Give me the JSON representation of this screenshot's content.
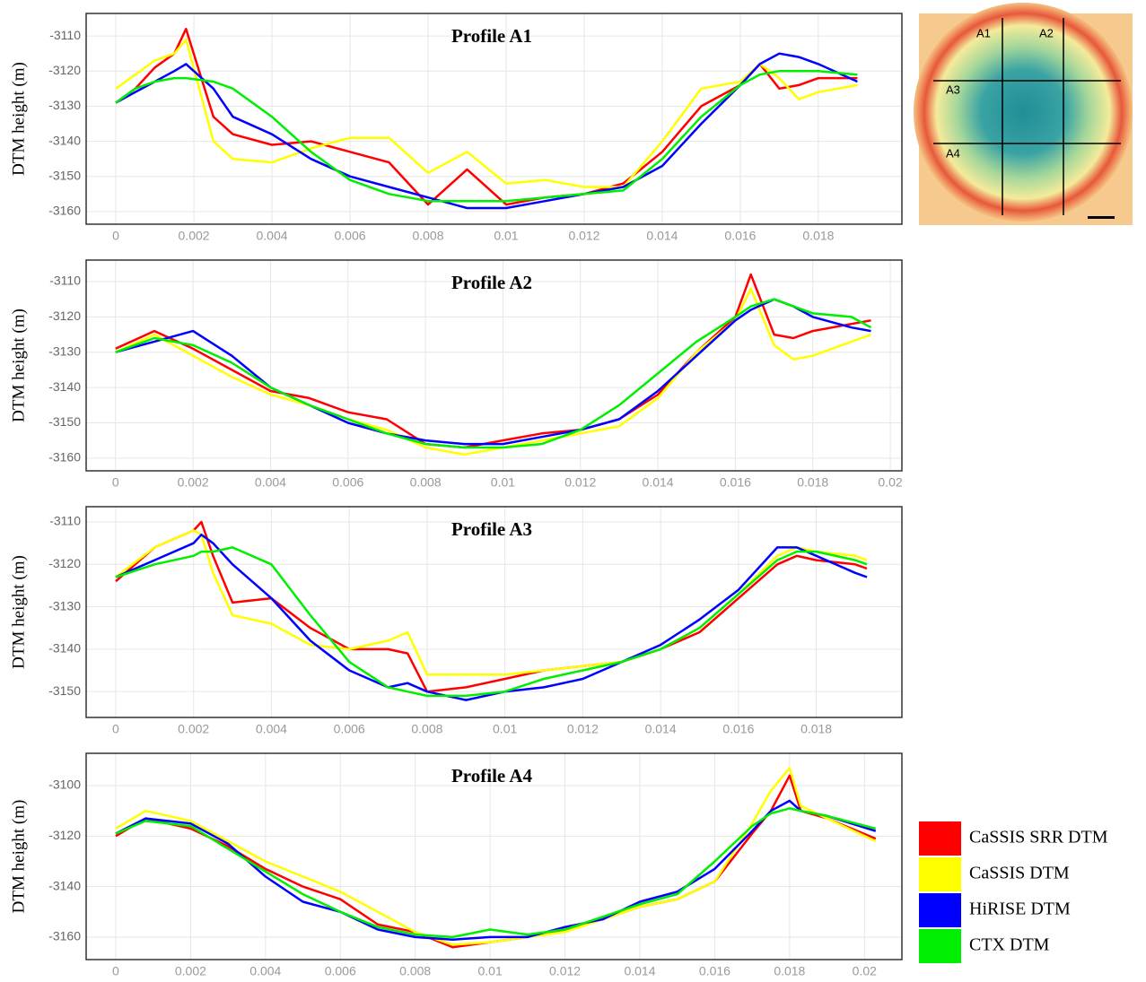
{
  "chart_data": [
    {
      "type": "line",
      "title": "Profile A1",
      "y_label": "DTM height (m)",
      "x": [
        0,
        0.0005,
        0.001,
        0.0015,
        0.0018,
        0.0025,
        0.003,
        0.004,
        0.005,
        0.006,
        0.007,
        0.008,
        0.009,
        0.01,
        0.011,
        0.012,
        0.013,
        0.014,
        0.015,
        0.016,
        0.0165,
        0.017,
        0.0175,
        0.018,
        0.019
      ],
      "series": [
        {
          "name": "CaSSIS SRR DTM",
          "color": "#ff0000",
          "values": [
            -3129,
            -3125,
            -3119,
            -3115,
            -3108,
            -3133,
            -3138,
            -3141,
            -3140,
            -3143,
            -3146,
            -3158,
            -3148,
            -3158,
            -3156,
            -3155,
            -3152,
            -3143,
            -3130,
            -3124,
            -3118,
            -3125,
            -3124,
            -3122,
            -3122
          ]
        },
        {
          "name": "CaSSIS DTM",
          "color": "#ffff00",
          "values": [
            -3125,
            -3121,
            -3117,
            -3115,
            -3111,
            -3140,
            -3145,
            -3146,
            -3142,
            -3139,
            -3139,
            -3149,
            -3143,
            -3152,
            -3151,
            -3153,
            -3153,
            -3140,
            -3125,
            -3123,
            -3118,
            -3122,
            -3128,
            -3126,
            -3124
          ]
        },
        {
          "name": "HiRISE DTM",
          "color": "#0000ff",
          "values": [
            -3129,
            -3126,
            -3123,
            -3120,
            -3118,
            -3125,
            -3133,
            -3138,
            -3145,
            -3150,
            -3153,
            -3156,
            -3159,
            -3159,
            -3157,
            -3155,
            -3153,
            -3147,
            -3135,
            -3124,
            -3118,
            -3115,
            -3116,
            -3118,
            -3123
          ]
        },
        {
          "name": "CTX DTM",
          "color": "#00ee00",
          "values": [
            -3129,
            -3125,
            -3123,
            -3122,
            -3122,
            -3123,
            -3125,
            -3133,
            -3143,
            -3151,
            -3155,
            -3157,
            -3157,
            -3157,
            -3156,
            -3155,
            -3154,
            -3145,
            -3133,
            -3124,
            -3121,
            -3120,
            -3120,
            -3120,
            -3121
          ]
        }
      ],
      "xlim": [
        -0.00076,
        0.02014
      ],
      "ylim": [
        -3163.6,
        -3103.6
      ],
      "xticks": [
        0,
        0.002,
        0.004,
        0.006,
        0.008,
        0.01,
        0.012,
        0.014,
        0.016,
        0.018
      ],
      "yticks": [
        -3110,
        -3120,
        -3130,
        -3140,
        -3150,
        -3160
      ],
      "grid": true
    },
    {
      "type": "line",
      "title": "Profile A2",
      "y_label": "DTM height (m)",
      "x": [
        0,
        0.001,
        0.002,
        0.003,
        0.004,
        0.005,
        0.006,
        0.007,
        0.008,
        0.009,
        0.01,
        0.011,
        0.012,
        0.013,
        0.014,
        0.015,
        0.016,
        0.0164,
        0.017,
        0.0175,
        0.018,
        0.019,
        0.0195
      ],
      "series": [
        {
          "name": "CaSSIS SRR DTM",
          "color": "#ff0000",
          "values": [
            -3129,
            -3124,
            -3129,
            -3135,
            -3141,
            -3143,
            -3147,
            -3149,
            -3156,
            -3157,
            -3155,
            -3153,
            -3152,
            -3149,
            -3142,
            -3130,
            -3120,
            -3108,
            -3125,
            -3126,
            -3124,
            -3122,
            -3121
          ]
        },
        {
          "name": "CaSSIS DTM",
          "color": "#ffff00",
          "values": [
            -3130,
            -3125,
            -3131,
            -3137,
            -3142,
            -3145,
            -3149,
            -3152,
            -3157,
            -3159,
            -3157,
            -3155,
            -3153,
            -3151,
            -3143,
            -3130,
            -3121,
            -3112,
            -3128,
            -3132,
            -3131,
            -3127,
            -3125
          ]
        },
        {
          "name": "HiRISE DTM",
          "color": "#0000ff",
          "values": [
            -3130,
            -3127,
            -3124,
            -3131,
            -3140,
            -3145,
            -3150,
            -3153,
            -3155,
            -3156,
            -3156,
            -3154,
            -3152,
            -3149,
            -3141,
            -3131,
            -3121,
            -3118,
            -3115,
            -3117,
            -3120,
            -3123,
            -3124
          ]
        },
        {
          "name": "CTX DTM",
          "color": "#00ee00",
          "values": [
            -3130,
            -3126,
            -3128,
            -3133,
            -3140,
            -3145,
            -3149,
            -3153,
            -3156,
            -3157,
            -3157,
            -3156,
            -3152,
            -3145,
            -3136,
            -3127,
            -3120,
            -3117,
            -3115,
            -3117,
            -3119,
            -3120,
            -3123
          ]
        }
      ],
      "xlim": [
        -0.00076,
        0.0203
      ],
      "ylim": [
        -3163.6,
        -3103.9
      ],
      "xticks": [
        0,
        0.002,
        0.004,
        0.006,
        0.008,
        0.01,
        0.012,
        0.014,
        0.016,
        0.018,
        0.02
      ],
      "yticks": [
        -3110,
        -3120,
        -3130,
        -3140,
        -3150,
        -3160
      ],
      "grid": true
    },
    {
      "type": "line",
      "title": "Profile A3",
      "y_label": "DTM height (m)",
      "x": [
        0,
        0.001,
        0.002,
        0.0022,
        0.0025,
        0.003,
        0.004,
        0.005,
        0.006,
        0.007,
        0.0075,
        0.008,
        0.009,
        0.01,
        0.011,
        0.012,
        0.013,
        0.014,
        0.015,
        0.016,
        0.017,
        0.0175,
        0.018,
        0.019,
        0.0193
      ],
      "series": [
        {
          "name": "CaSSIS SRR DTM",
          "color": "#ff0000",
          "values": [
            -3124,
            -3116,
            -3112,
            -3110,
            -3118,
            -3129,
            -3128,
            -3135,
            -3140,
            -3140,
            -3141,
            -3150,
            -3149,
            -3147,
            -3145,
            -3144,
            -3143,
            -3140,
            -3136,
            -3128,
            -3120,
            -3118,
            -3119,
            -3120,
            -3121
          ]
        },
        {
          "name": "CaSSIS DTM",
          "color": "#ffff00",
          "values": [
            -3123,
            -3116,
            -3112,
            -3113,
            -3122,
            -3132,
            -3134,
            -3139,
            -3140,
            -3138,
            -3136,
            -3146,
            -3146,
            -3146,
            -3145,
            -3144,
            -3143,
            -3140,
            -3135,
            -3127,
            -3118,
            -3116,
            -3117,
            -3118,
            -3119
          ]
        },
        {
          "name": "HiRISE DTM",
          "color": "#0000ff",
          "values": [
            -3123,
            -3119,
            -3115,
            -3113,
            -3115,
            -3120,
            -3128,
            -3138,
            -3145,
            -3149,
            -3148,
            -3150,
            -3152,
            -3150,
            -3149,
            -3147,
            -3143,
            -3139,
            -3133,
            -3126,
            -3116,
            -3116,
            -3118,
            -3122,
            -3123
          ]
        },
        {
          "name": "CTX DTM",
          "color": "#00ee00",
          "values": [
            -3123,
            -3120,
            -3118,
            -3117,
            -3117,
            -3116,
            -3120,
            -3132,
            -3143,
            -3149,
            -3150,
            -3151,
            -3151,
            -3150,
            -3147,
            -3145,
            -3143,
            -3140,
            -3135,
            -3127,
            -3119,
            -3117,
            -3117,
            -3119,
            -3120
          ]
        }
      ],
      "xlim": [
        -0.00076,
        0.0202
      ],
      "ylim": [
        -3156.1,
        -3106.4
      ],
      "xticks": [
        0,
        0.002,
        0.004,
        0.006,
        0.008,
        0.01,
        0.012,
        0.014,
        0.016,
        0.018
      ],
      "yticks": [
        -3110,
        -3120,
        -3130,
        -3140,
        -3150
      ],
      "grid": true
    },
    {
      "type": "line",
      "title": "Profile A4",
      "y_label": "DTM height (m)",
      "x": [
        0,
        0.0008,
        0.002,
        0.003,
        0.004,
        0.005,
        0.006,
        0.007,
        0.008,
        0.009,
        0.01,
        0.011,
        0.012,
        0.013,
        0.014,
        0.015,
        0.016,
        0.017,
        0.0175,
        0.018,
        0.0183,
        0.019,
        0.0203
      ],
      "series": [
        {
          "name": "CaSSIS SRR DTM",
          "color": "#ff0000",
          "values": [
            -3120,
            -3113,
            -3117,
            -3124,
            -3133,
            -3140,
            -3145,
            -3155,
            -3158,
            -3164,
            -3162,
            -3160,
            -3157,
            -3153,
            -3148,
            -3145,
            -3138,
            -3119,
            -3110,
            -3096,
            -3110,
            -3113,
            -3121
          ]
        },
        {
          "name": "CaSSIS DTM",
          "color": "#ffff00",
          "values": [
            -3117,
            -3110,
            -3114,
            -3122,
            -3130,
            -3136,
            -3142,
            -3150,
            -3158,
            -3163,
            -3162,
            -3160,
            -3158,
            -3153,
            -3148,
            -3145,
            -3138,
            -3115,
            -3102,
            -3093,
            -3108,
            -3113,
            -3122
          ]
        },
        {
          "name": "HiRISE DTM",
          "color": "#0000ff",
          "values": [
            -3119,
            -3113,
            -3115,
            -3123,
            -3136,
            -3146,
            -3150,
            -3157,
            -3160,
            -3161,
            -3160,
            -3160,
            -3156,
            -3153,
            -3146,
            -3142,
            -3133,
            -3118,
            -3110,
            -3106,
            -3110,
            -3112,
            -3118
          ]
        },
        {
          "name": "CTX DTM",
          "color": "#00ee00",
          "values": [
            -3119,
            -3114,
            -3116,
            -3125,
            -3134,
            -3143,
            -3150,
            -3156,
            -3159,
            -3160,
            -3157,
            -3159,
            -3157,
            -3152,
            -3147,
            -3143,
            -3130,
            -3116,
            -3111,
            -3109,
            -3110,
            -3112,
            -3117
          ]
        }
      ],
      "xlim": [
        -0.00079,
        0.021
      ],
      "ylim": [
        -3168.9,
        -3087.2
      ],
      "xticks": [
        0,
        0.002,
        0.004,
        0.006,
        0.008,
        0.01,
        0.012,
        0.014,
        0.016,
        0.018,
        0.02
      ],
      "yticks": [
        -3100,
        -3120,
        -3140,
        -3160
      ],
      "grid": true
    }
  ],
  "map": {
    "labels": [
      "A1",
      "A2",
      "A3",
      "A4"
    ]
  }
}
